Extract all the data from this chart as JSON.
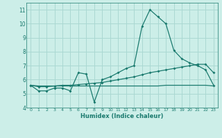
{
  "xlabel": "Humidex (Indice chaleur)",
  "x": [
    0,
    1,
    2,
    3,
    4,
    5,
    6,
    7,
    8,
    9,
    10,
    11,
    12,
    13,
    14,
    15,
    16,
    17,
    18,
    19,
    20,
    21,
    22,
    23
  ],
  "line1": [
    5.6,
    5.2,
    5.2,
    5.4,
    5.4,
    5.2,
    6.5,
    6.4,
    4.4,
    6.0,
    6.2,
    6.5,
    6.8,
    7.0,
    9.8,
    11.0,
    10.5,
    10.0,
    8.1,
    7.5,
    7.2,
    7.0,
    6.7,
    5.6
  ],
  "line2": [
    5.6,
    5.5,
    5.5,
    5.55,
    5.6,
    5.6,
    5.65,
    5.7,
    5.75,
    5.8,
    5.9,
    6.0,
    6.1,
    6.2,
    6.35,
    6.5,
    6.6,
    6.7,
    6.8,
    6.9,
    7.0,
    7.1,
    7.1,
    6.5
  ],
  "line3": [
    5.6,
    5.55,
    5.55,
    5.55,
    5.55,
    5.55,
    5.55,
    5.55,
    5.55,
    5.55,
    5.55,
    5.55,
    5.55,
    5.55,
    5.55,
    5.55,
    5.55,
    5.6,
    5.6,
    5.6,
    5.6,
    5.6,
    5.6,
    5.55
  ],
  "ylim": [
    4,
    11.5
  ],
  "xlim": [
    -0.5,
    23.5
  ],
  "yticks": [
    4,
    5,
    6,
    7,
    8,
    9,
    10,
    11
  ],
  "xticks": [
    0,
    1,
    2,
    3,
    4,
    5,
    6,
    7,
    8,
    9,
    10,
    11,
    12,
    13,
    14,
    15,
    16,
    17,
    18,
    19,
    20,
    21,
    22,
    23
  ],
  "line_color": "#1a7a6e",
  "bg_color": "#cceee8",
  "grid_color": "#aad8d2"
}
